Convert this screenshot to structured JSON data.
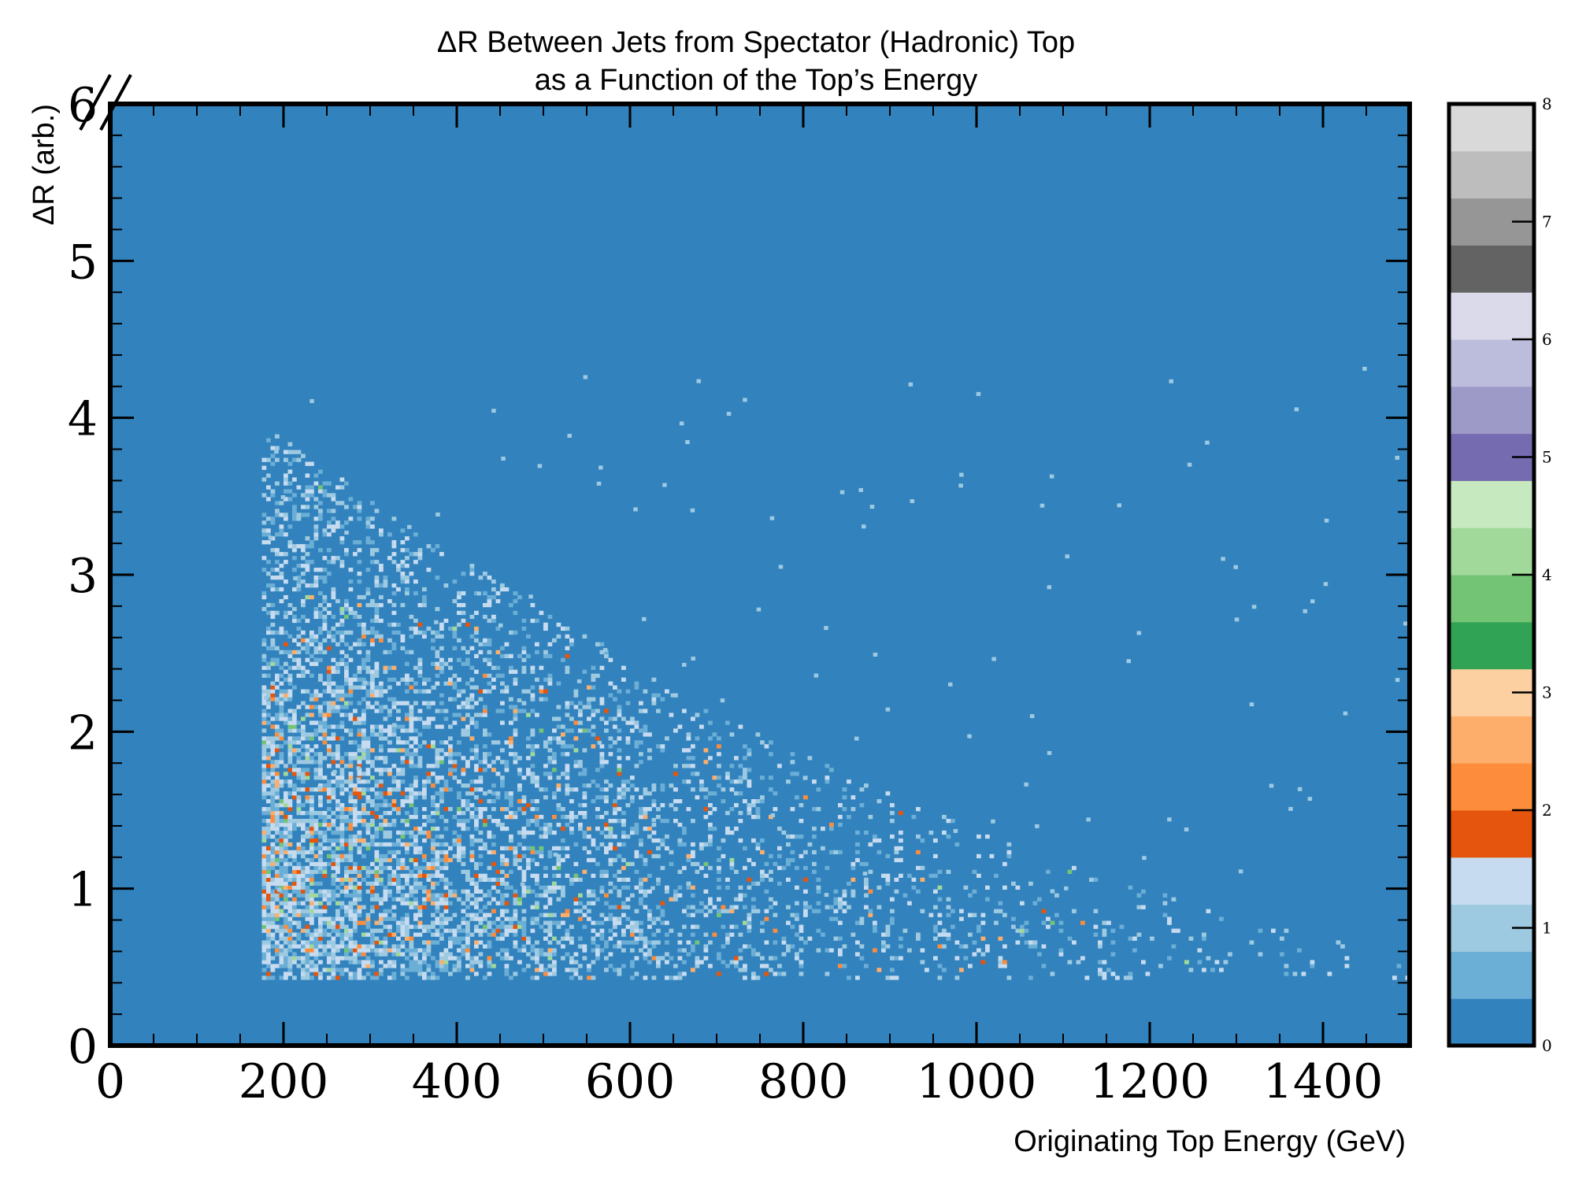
{
  "chart_data": {
    "type": "heatmap",
    "title": "ΔR Between Jets from Spectator (Hadronic) Top",
    "subtitle": "as a Function of the Top’s Energy",
    "xlabel": "Originating Top Energy (GeV)",
    "ylabel": "ΔR (arb.)",
    "xlim": [
      0,
      1500
    ],
    "ylim": [
      0,
      6
    ],
    "x_ticks": [
      "0",
      "200",
      "400",
      "600",
      "800",
      "1000",
      "1200",
      "1400"
    ],
    "y_ticks": [
      "0",
      "1",
      "2",
      "3",
      "4",
      "5",
      "6"
    ],
    "colorbar": {
      "range": [
        0,
        8
      ],
      "ticks": [
        "0",
        "1",
        "2",
        "3",
        "4",
        "5",
        "6",
        "7",
        "8"
      ],
      "colors": [
        "#3182bd",
        "#6baed6",
        "#9ecae1",
        "#c6dbef",
        "#e6550d",
        "#fd8d3c",
        "#fdae6b",
        "#fdd0a2",
        "#31a354",
        "#74c476",
        "#a1d99b",
        "#c7e9c0",
        "#756bb1",
        "#9e9ac8",
        "#bcbddc",
        "#dadaeb",
        "#636363",
        "#969696",
        "#bdbdbd",
        "#d9d9d9"
      ]
    },
    "background_color": "#3182bd",
    "populated_region": {
      "x_min": 175,
      "x_max": 1500,
      "y_min": 0.42,
      "y_max_at_x_min": 3.7,
      "peak_x": 200,
      "peak_y": 1.2
    },
    "grid": false
  }
}
